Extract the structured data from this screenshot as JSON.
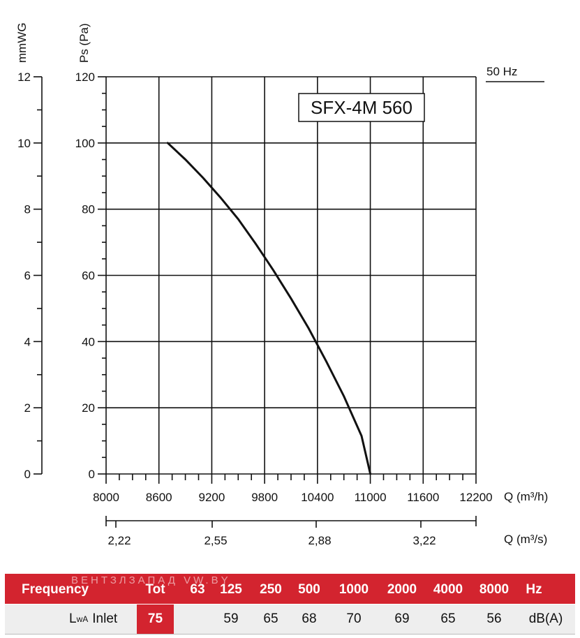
{
  "chart_data": {
    "type": "line",
    "model_label": "SFX-4M 560",
    "frequency_label": "50 Hz",
    "y_axis_left_label": "mmWG",
    "y_axis_right_label": "Ps (Pa)",
    "y_mmwg_ticks": [
      "0",
      "2",
      "4",
      "6",
      "8",
      "10",
      "12"
    ],
    "y_pa_ticks": [
      "0",
      "20",
      "40",
      "60",
      "80",
      "100",
      "120"
    ],
    "ylim_pa": [
      0,
      120
    ],
    "x_axis_label": "Q (m³/h)",
    "x_ticks": [
      "8000",
      "8600",
      "9200",
      "9800",
      "10400",
      "11000",
      "11600",
      "12200"
    ],
    "xlim_m3h": [
      8000,
      12200
    ],
    "x2_axis_label": "Q (m³/s)",
    "x2_ticks": [
      "2,22",
      "2,55",
      "2,88",
      "3,22"
    ],
    "grid": true,
    "series": [
      {
        "points": [
          [
            8700,
            100
          ],
          [
            8900,
            95
          ],
          [
            9100,
            89.5
          ],
          [
            9300,
            83.5
          ],
          [
            9500,
            77
          ],
          [
            9700,
            69.5
          ],
          [
            9900,
            61.5
          ],
          [
            10100,
            53
          ],
          [
            10300,
            44
          ],
          [
            10500,
            34
          ],
          [
            10700,
            23.5
          ],
          [
            10900,
            11.5
          ],
          [
            11000,
            0
          ]
        ]
      }
    ]
  },
  "sound_table": {
    "frequency_label": "Frequency",
    "tot_label": "Tot",
    "bands": [
      "63",
      "125",
      "250",
      "500",
      "1000",
      "2000",
      "4000",
      "8000"
    ],
    "hz_label": "Hz",
    "row_label_main": "L",
    "row_label_sub": "wA",
    "row_label_suffix": "Inlet",
    "tot_value": "75",
    "values": [
      "",
      "59",
      "65",
      "68",
      "70",
      "69",
      "65",
      "56"
    ],
    "unit": "dB(A)",
    "watermark": "ВЕНТЗЛЗАПАД  VW.BY"
  },
  "colors": {
    "header_red": "#d3242f",
    "curve": "#111111",
    "grid": "#111111"
  }
}
